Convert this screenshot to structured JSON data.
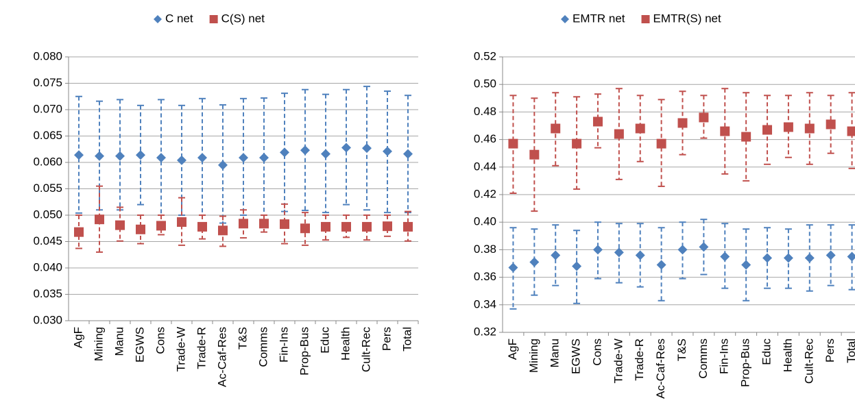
{
  "chart_data": [
    {
      "type": "errorbar",
      "categories": [
        "AgF",
        "Mining",
        "Manu",
        "EGWS",
        "Cons",
        "Trade-W",
        "Trade-R",
        "Ac-Caf-Res",
        "T&S",
        "Comms",
        "Fin-Ins",
        "Prop-Bus",
        "Educ",
        "Health",
        "Cult-Rec",
        "Pers",
        "Total"
      ],
      "series": [
        {
          "name": "C net",
          "color": "#4f81bd",
          "marker": "diamond",
          "values": [
            0.0614,
            0.0612,
            0.0612,
            0.0614,
            0.0609,
            0.0604,
            0.0609,
            0.0595,
            0.0609,
            0.0609,
            0.0619,
            0.0623,
            0.0616,
            0.0628,
            0.0627,
            0.0621,
            0.0616
          ],
          "upper": [
            0.0725,
            0.0716,
            0.0719,
            0.0708,
            0.0719,
            0.0708,
            0.0721,
            0.0709,
            0.0721,
            0.0722,
            0.0731,
            0.0738,
            0.0729,
            0.0738,
            0.0744,
            0.0735,
            0.0727
          ],
          "lower": [
            0.0504,
            0.051,
            0.051,
            0.052,
            0.05,
            0.05,
            0.05,
            0.0485,
            0.05,
            0.05,
            0.0507,
            0.0509,
            0.0505,
            0.052,
            0.051,
            0.0505,
            0.0505
          ]
        },
        {
          "name": "C(S) net",
          "color": "#c0504d",
          "marker": "square",
          "values": [
            0.0468,
            0.0492,
            0.0481,
            0.0473,
            0.048,
            0.0487,
            0.0478,
            0.0471,
            0.0484,
            0.0484,
            0.0483,
            0.0475,
            0.0478,
            0.0478,
            0.0478,
            0.0479,
            0.0478
          ],
          "upper": [
            0.05,
            0.0555,
            0.0515,
            0.05,
            0.05,
            0.0533,
            0.05,
            0.0498,
            0.051,
            0.05,
            0.0521,
            0.0505,
            0.05,
            0.05,
            0.05,
            0.05,
            0.0507
          ],
          "lower": [
            0.0437,
            0.043,
            0.0451,
            0.0446,
            0.0463,
            0.0443,
            0.0455,
            0.0441,
            0.0457,
            0.0468,
            0.0446,
            0.0443,
            0.0453,
            0.0458,
            0.0453,
            0.046,
            0.0451
          ]
        }
      ],
      "ylim": [
        0.03,
        0.08
      ],
      "yticks": [
        {
          "value": 0.03,
          "label": "0.030"
        },
        0.035,
        {
          "value": 0.04,
          "label": "0.040"
        },
        0.045,
        {
          "value": 0.05,
          "label": "0.050"
        },
        0.055,
        {
          "value": 0.06,
          "label": "0.060"
        },
        0.065,
        {
          "value": 0.07,
          "label": "0.070"
        },
        0.075,
        {
          "value": 0.08,
          "label": "0.080"
        }
      ],
      "grid": true,
      "legend": "top"
    },
    {
      "type": "errorbar",
      "categories": [
        "AgF",
        "Mining",
        "Manu",
        "EGWS",
        "Cons",
        "Trade-W",
        "Trade-R",
        "Ac-Caf-Res",
        "T&S",
        "Comms",
        "Fin-Ins",
        "Prop-Bus",
        "Educ",
        "Health",
        "Cult-Rec",
        "Pers",
        "Total"
      ],
      "series": [
        {
          "name": "EMTR net",
          "color": "#4f81bd",
          "marker": "diamond",
          "values": [
            0.367,
            0.371,
            0.376,
            0.368,
            0.38,
            0.378,
            0.376,
            0.369,
            0.38,
            0.382,
            0.375,
            0.369,
            0.374,
            0.374,
            0.374,
            0.376,
            0.375
          ],
          "upper": [
            0.396,
            0.395,
            0.398,
            0.394,
            0.4,
            0.399,
            0.399,
            0.396,
            0.4,
            0.402,
            0.399,
            0.395,
            0.396,
            0.395,
            0.398,
            0.398,
            0.398
          ],
          "lower": [
            0.337,
            0.347,
            0.354,
            0.341,
            0.359,
            0.356,
            0.353,
            0.343,
            0.359,
            0.362,
            0.352,
            0.343,
            0.352,
            0.352,
            0.35,
            0.354,
            0.351
          ]
        },
        {
          "name": "EMTR(S) net",
          "color": "#c0504d",
          "marker": "square",
          "values": [
            0.457,
            0.449,
            0.468,
            0.457,
            0.473,
            0.464,
            0.468,
            0.457,
            0.472,
            0.476,
            0.466,
            0.462,
            0.467,
            0.469,
            0.468,
            0.471,
            0.466
          ],
          "upper": [
            0.492,
            0.49,
            0.494,
            0.491,
            0.493,
            0.497,
            0.492,
            0.489,
            0.495,
            0.492,
            0.497,
            0.494,
            0.492,
            0.492,
            0.494,
            0.492,
            0.494
          ],
          "lower": [
            0.421,
            0.408,
            0.441,
            0.424,
            0.454,
            0.431,
            0.444,
            0.426,
            0.449,
            0.461,
            0.435,
            0.43,
            0.442,
            0.447,
            0.442,
            0.45,
            0.439
          ]
        }
      ],
      "ylim": [
        0.32,
        0.52
      ],
      "yticks": [
        0.32,
        0.34,
        0.36,
        0.38,
        {
          "value": 0.4,
          "label": "0.40"
        },
        0.42,
        0.44,
        0.46,
        0.48,
        {
          "value": 0.5,
          "label": "0.50"
        },
        0.52
      ],
      "grid": true,
      "legend": "top"
    }
  ]
}
